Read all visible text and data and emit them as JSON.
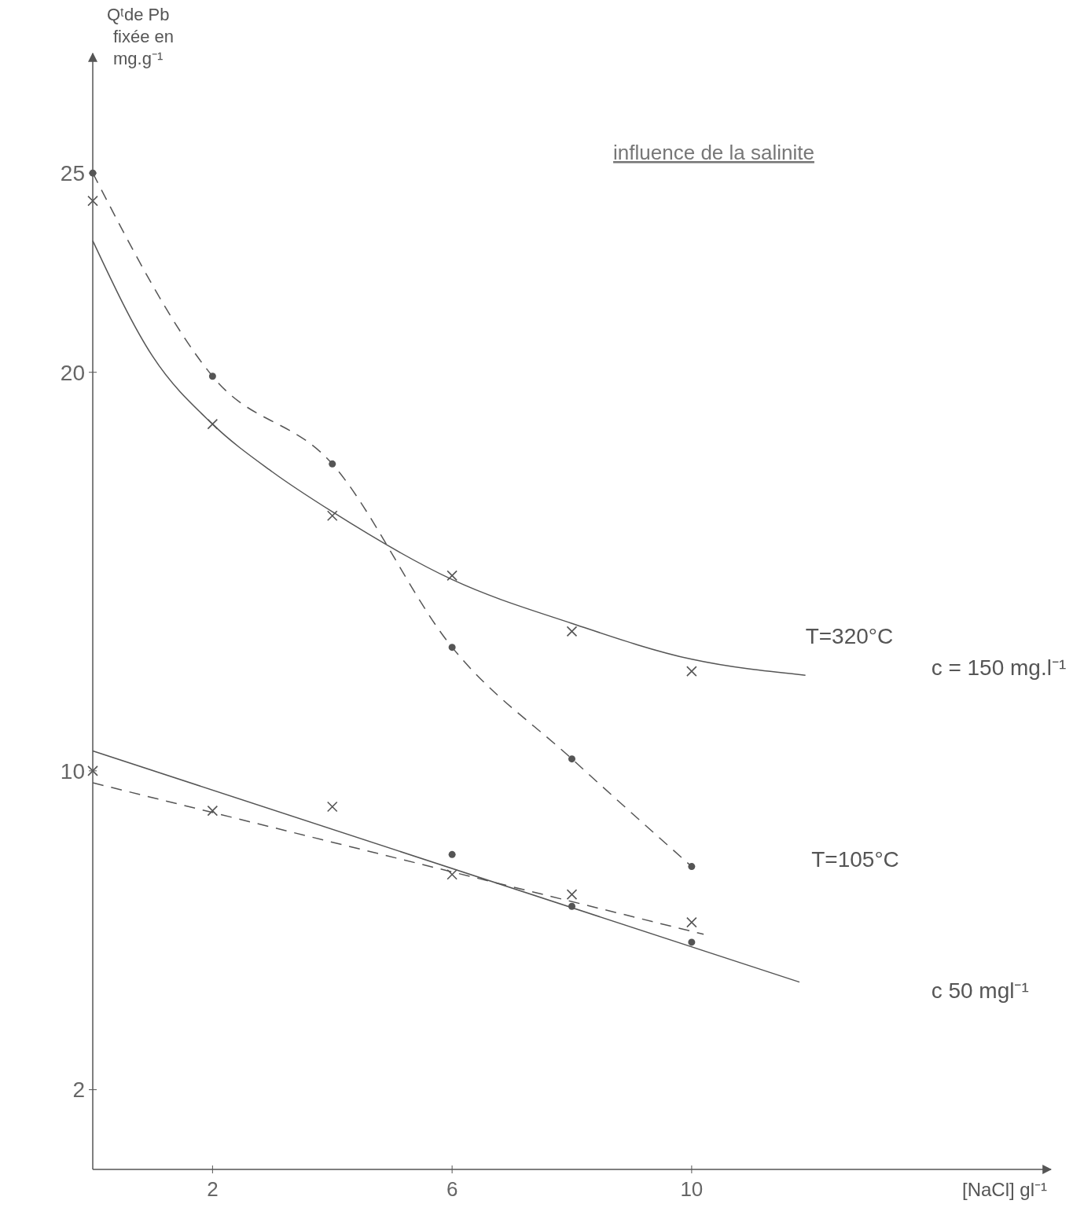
{
  "chart_data": {
    "type": "line",
    "title": "influence de la salinite",
    "xlabel": "[NaCl] gl⁻¹",
    "ylabel": "Qᵗde Pb fixée en mg.g⁻¹",
    "xlim": [
      0,
      16
    ],
    "ylim": [
      0,
      28
    ],
    "xticks": [
      2,
      6,
      10
    ],
    "yticks": [
      2,
      10,
      20,
      25
    ],
    "grid": false,
    "series": [
      {
        "color": "#555555",
        "line_style": "solid",
        "marker": "none",
        "x": [
          0,
          1,
          2,
          3,
          4,
          6,
          8,
          10,
          11.9
        ],
        "values": [
          23.3,
          20.4,
          18.7,
          17.5,
          16.5,
          14.8,
          13.7,
          12.8,
          12.4
        ]
      },
      {
        "type": "scatter",
        "color": "#555555",
        "marker": "cross",
        "x": [
          0,
          2,
          4,
          6,
          8,
          10
        ],
        "values": [
          24.3,
          18.7,
          16.4,
          14.9,
          13.5,
          12.5
        ]
      },
      {
        "color": "#555555",
        "line_style": "dashed",
        "marker": "circle",
        "x": [
          0,
          2,
          4,
          6,
          8,
          10
        ],
        "values": [
          25,
          19.9,
          17.7,
          13.1,
          10.3,
          7.6
        ]
      },
      {
        "color": "#555555",
        "line_style": "solid",
        "marker": "none",
        "x": [
          0,
          11.8
        ],
        "values": [
          10.5,
          4.7
        ]
      },
      {
        "color": "#555555",
        "line_style": "dashed",
        "marker": "none",
        "x": [
          0,
          10.2
        ],
        "values": [
          9.7,
          5.9
        ]
      },
      {
        "type": "scatter",
        "color": "#555555",
        "marker": "cross",
        "x": [
          0,
          2,
          4,
          6,
          8,
          10
        ],
        "values": [
          10,
          9,
          9.1,
          7.4,
          6.9,
          6.2
        ]
      },
      {
        "type": "scatter",
        "color": "#555555",
        "marker": "circle",
        "x": [
          6,
          8,
          10
        ],
        "values": [
          7.9,
          6.6,
          5.7
        ]
      }
    ],
    "annotations": [
      "T=320°C",
      "c = 150 mg.l⁻¹",
      "T=105°C",
      "c 50 mgl⁻¹"
    ]
  }
}
